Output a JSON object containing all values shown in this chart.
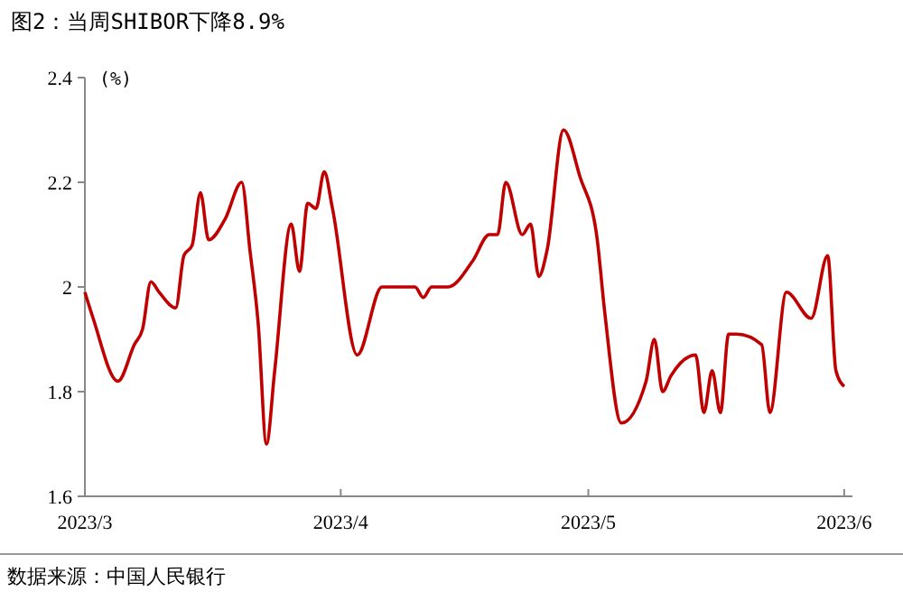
{
  "chart_data": {
    "type": "line",
    "title": "图2：当周SHIBOR下降8.9%",
    "ylabel": "(%)",
    "annotations": [
      "数据来源：中国人民银行"
    ],
    "x": [
      "2023-03-01",
      "2023-03-02",
      "2023-03-05",
      "2023-03-07",
      "2023-03-08",
      "2023-03-09",
      "2023-03-10",
      "2023-03-12",
      "2023-03-13",
      "2023-03-14",
      "2023-03-15",
      "2023-03-16",
      "2023-03-18",
      "2023-03-20",
      "2023-03-21",
      "2023-03-22",
      "2023-03-23",
      "2023-03-24",
      "2023-03-26",
      "2023-03-27",
      "2023-03-28",
      "2023-03-29",
      "2023-03-30",
      "2023-03-31",
      "2023-04-03",
      "2023-04-06",
      "2023-04-10",
      "2023-04-11",
      "2023-04-12",
      "2023-04-14",
      "2023-04-17",
      "2023-04-19",
      "2023-04-20",
      "2023-04-21",
      "2023-04-23",
      "2023-04-24",
      "2023-04-25",
      "2023-04-26",
      "2023-04-28",
      "2023-04-30",
      "2023-05-02",
      "2023-05-03",
      "2023-05-05",
      "2023-05-08",
      "2023-05-09",
      "2023-05-10",
      "2023-05-11",
      "2023-05-14",
      "2023-05-15",
      "2023-05-16",
      "2023-05-17",
      "2023-05-18",
      "2023-05-19",
      "2023-05-22",
      "2023-05-23",
      "2023-05-25",
      "2023-05-28",
      "2023-05-30",
      "2023-05-31",
      "2023-06-01"
    ],
    "series": [
      {
        "color": "#c00000",
        "values": [
          1.99,
          1.94,
          1.82,
          1.89,
          1.92,
          2.01,
          1.99,
          1.96,
          2.06,
          2.08,
          2.18,
          2.09,
          2.13,
          2.2,
          2.07,
          1.93,
          1.7,
          1.84,
          2.12,
          2.03,
          2.16,
          2.15,
          2.22,
          2.15,
          1.87,
          2.0,
          2.0,
          1.98,
          2.0,
          2.0,
          2.05,
          2.1,
          2.1,
          2.2,
          2.1,
          2.12,
          2.02,
          2.07,
          2.3,
          2.21,
          2.1,
          1.95,
          1.74,
          1.82,
          1.9,
          1.8,
          1.83,
          1.87,
          1.76,
          1.84,
          1.76,
          1.91,
          1.91,
          1.89,
          1.76,
          1.99,
          1.94,
          2.06,
          1.84,
          1.81
        ]
      }
    ],
    "xlim": [
      "2023-03-01",
      "2023-06-02"
    ],
    "xticks": [
      {
        "value": "2023-03-01",
        "label": "2023/3"
      },
      {
        "value": "2023-04-01",
        "label": "2023/4"
      },
      {
        "value": "2023-05-01",
        "label": "2023/5"
      },
      {
        "value": "2023-06-01",
        "label": "2023/6"
      }
    ],
    "ylim": [
      1.6,
      2.4
    ],
    "yticks": [
      1.6,
      1.8,
      2,
      2.2,
      2.4
    ],
    "grid": false,
    "marker": "none",
    "line_style": "solid"
  }
}
